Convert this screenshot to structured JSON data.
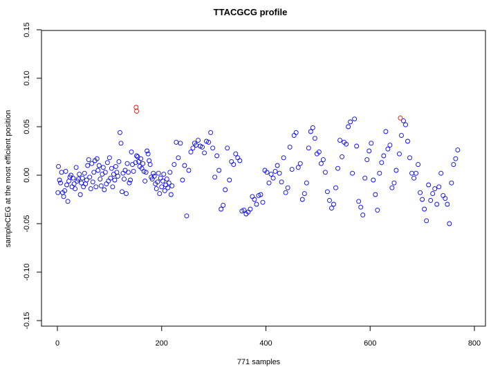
{
  "chart_data": {
    "type": "scatter",
    "title": "TTACGCG profile",
    "xlabel": "771 samples",
    "ylabel": "sampleCEG at the most efficient position",
    "xlim": [
      0,
      800
    ],
    "ylim": [
      -0.15,
      0.15
    ],
    "x_ticks": [
      "0",
      "200",
      "400",
      "600",
      "800"
    ],
    "y_ticks": [
      "-0.15",
      "-0.10",
      "-0.05",
      "0.00",
      "0.05",
      "0.10",
      "0.15"
    ],
    "grid": false,
    "legend": "none",
    "colors": {
      "normal": "#0000ff",
      "highlight": "#ff0000"
    },
    "series": [
      {
        "color": "#0000ff",
        "x": [
          1,
          2,
          4,
          6,
          8,
          10,
          12,
          14,
          16,
          18,
          20,
          22,
          24,
          26,
          28,
          30,
          32,
          34,
          36,
          38,
          40,
          42,
          44,
          46,
          48,
          50,
          52,
          54,
          56,
          58,
          60,
          62,
          64,
          66,
          68,
          70,
          72,
          74,
          76,
          78,
          80,
          82,
          84,
          86,
          88,
          90,
          92,
          94,
          96,
          98,
          100,
          102,
          104,
          106,
          108,
          110,
          112,
          114,
          116,
          118,
          120,
          122,
          124,
          126,
          128,
          130,
          132,
          134,
          136,
          138,
          140,
          142,
          144,
          146,
          150,
          152,
          154,
          156,
          158,
          160,
          162,
          164,
          166,
          168,
          170,
          172,
          174,
          176,
          178,
          180,
          182,
          184,
          186,
          188,
          190,
          192,
          194,
          196,
          198,
          200,
          202,
          204,
          206,
          208,
          210,
          212,
          214,
          216,
          218,
          220,
          224,
          228,
          232,
          236,
          240,
          244,
          248,
          252,
          256,
          260,
          263,
          266,
          270,
          274,
          278,
          282,
          286,
          290,
          294,
          298,
          302,
          306,
          310,
          314,
          318,
          322,
          326,
          330,
          334,
          338,
          342,
          346,
          350,
          354,
          358,
          362,
          366,
          370,
          374,
          378,
          382,
          386,
          390,
          394,
          398,
          402,
          406,
          410,
          414,
          418,
          422,
          426,
          430,
          434,
          438,
          442,
          446,
          450,
          454,
          458,
          462,
          466,
          470,
          474,
          478,
          482,
          486,
          490,
          494,
          498,
          502,
          506,
          510,
          514,
          518,
          522,
          526,
          530,
          534,
          538,
          542,
          546,
          550,
          554,
          558,
          562,
          566,
          570,
          574,
          578,
          582,
          586,
          590,
          594,
          598,
          602,
          606,
          610,
          614,
          618,
          622,
          626,
          630,
          634,
          638,
          642,
          646,
          650,
          656,
          660,
          664,
          668,
          672,
          676,
          680,
          684,
          688,
          692,
          696,
          700,
          704,
          708,
          712,
          716,
          720,
          724,
          728,
          732,
          736,
          740,
          744,
          748,
          752,
          756,
          760,
          764,
          768
        ],
        "y": [
          -0.018,
          0.009,
          -0.005,
          -0.008,
          0.003,
          -0.018,
          -0.022,
          -0.016,
          0.004,
          -0.01,
          -0.027,
          -0.006,
          -0.002,
          0.0,
          -0.012,
          -0.003,
          -0.009,
          -0.014,
          0.008,
          -0.006,
          -0.004,
          0.001,
          -0.02,
          -0.008,
          -0.003,
          -0.012,
          0.002,
          -0.009,
          -0.005,
          0.01,
          0.016,
          -0.002,
          -0.014,
          0.012,
          -0.007,
          0.003,
          0.015,
          -0.012,
          0.017,
          0.005,
          0.01,
          -0.004,
          -0.011,
          0.001,
          0.008,
          -0.015,
          0.003,
          -0.009,
          0.013,
          -0.006,
          0.018,
          -0.003,
          0.007,
          -0.012,
          0.001,
          -0.005,
          0.009,
          0.003,
          -0.001,
          0.014,
          0.044,
          0.033,
          -0.017,
          0.002,
          -0.004,
          0.005,
          -0.019,
          0.012,
          0.003,
          -0.008,
          -0.005,
          0.024,
          0.011,
          0.004,
          0.013,
          0.02,
          0.019,
          0.014,
          0.009,
          0.017,
          0.007,
          0.012,
          0.004,
          -0.006,
          0.003,
          0.025,
          0.022,
          0.015,
          0.011,
          -0.002,
          -0.004,
          0.002,
          -0.001,
          -0.009,
          -0.014,
          -0.007,
          0.002,
          -0.019,
          -0.003,
          -0.012,
          -0.006,
          0.001,
          -0.016,
          -0.01,
          -0.004,
          -0.013,
          -0.008,
          0.003,
          -0.02,
          -0.011,
          0.011,
          0.034,
          0.018,
          0.033,
          -0.005,
          0.01,
          -0.042,
          0.005,
          0.024,
          0.028,
          0.033,
          0.031,
          0.036,
          0.03,
          0.029,
          0.023,
          0.035,
          0.034,
          0.044,
          0.028,
          -0.002,
          0.02,
          0.005,
          -0.035,
          -0.031,
          -0.015,
          0.028,
          -0.005,
          0.014,
          0.011,
          0.022,
          0.018,
          0.015,
          -0.037,
          -0.036,
          -0.04,
          -0.038,
          -0.035,
          -0.022,
          -0.025,
          -0.03,
          -0.021,
          -0.02,
          -0.028,
          0.005,
          0.003,
          -0.008,
          0.001,
          -0.003,
          0.004,
          0.01,
          0.002,
          -0.007,
          0.018,
          -0.018,
          -0.013,
          0.029,
          0.006,
          0.041,
          0.044,
          0.008,
          0.012,
          -0.025,
          -0.019,
          -0.008,
          0.028,
          0.045,
          0.049,
          0.038,
          0.022,
          0.024,
          0.012,
          0.016,
          0.003,
          -0.017,
          -0.026,
          -0.034,
          -0.03,
          -0.013,
          0.007,
          0.036,
          0.019,
          0.034,
          0.032,
          0.05,
          0.055,
          0.002,
          0.058,
          0.03,
          -0.027,
          -0.033,
          -0.041,
          -0.003,
          0.016,
          0.025,
          0.033,
          -0.005,
          -0.02,
          -0.036,
          0.002,
          0.013,
          0.02,
          0.045,
          0.027,
          0.031,
          -0.013,
          -0.008,
          0.005,
          0.022,
          0.041,
          0.056,
          0.052,
          0.035,
          0.018,
          0.002,
          -0.003,
          0.002,
          0.011,
          -0.018,
          -0.025,
          -0.035,
          -0.047,
          -0.01,
          -0.026,
          -0.019,
          -0.014,
          -0.03,
          -0.012,
          0.002,
          -0.021,
          -0.024,
          -0.03,
          -0.05,
          -0.008,
          0.011,
          0.017,
          0.026
        ]
      },
      {
        "color": "#ff0000",
        "x": [
          151,
          152,
          658
        ],
        "y": [
          0.07,
          0.066,
          0.059
        ]
      }
    ]
  }
}
